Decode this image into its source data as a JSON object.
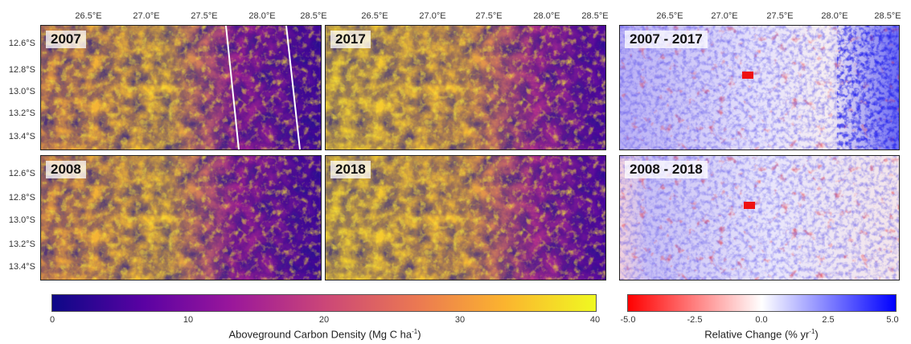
{
  "colors": {
    "density_scale": [
      "#0d0887",
      "#5b02a3",
      "#9a179b",
      "#cb4678",
      "#eb7852",
      "#fbb32f",
      "#f0f921"
    ],
    "change_scale": [
      "#ff0000",
      "#ffffff",
      "#0000ff"
    ]
  },
  "axes": {
    "lon_ticks": [
      "26.5°E",
      "27.0°E",
      "27.5°E",
      "28.0°E",
      "28.5°E"
    ],
    "lat_ticks": [
      "12.6°S",
      "12.8°S",
      "13.0°S",
      "13.2°S",
      "13.4°S"
    ]
  },
  "panels": {
    "p2007": "2007",
    "p2017": "2017",
    "p2008": "2008",
    "p2018": "2018",
    "d1": "2007 - 2017",
    "d2": "2008 - 2018"
  },
  "colorbar_density": {
    "ticks": [
      "0",
      "10",
      "20",
      "30",
      "40"
    ],
    "title_main": "Aboveground Carbon Density (Mg C ha",
    "title_sup": "-1",
    "title_end": ")"
  },
  "colorbar_change": {
    "ticks": [
      "-5.0",
      "-2.5",
      "0.0",
      "2.5",
      "5.0"
    ],
    "title_main": "Relative Change (% yr",
    "title_sup": "-1",
    "title_end": ")"
  }
}
